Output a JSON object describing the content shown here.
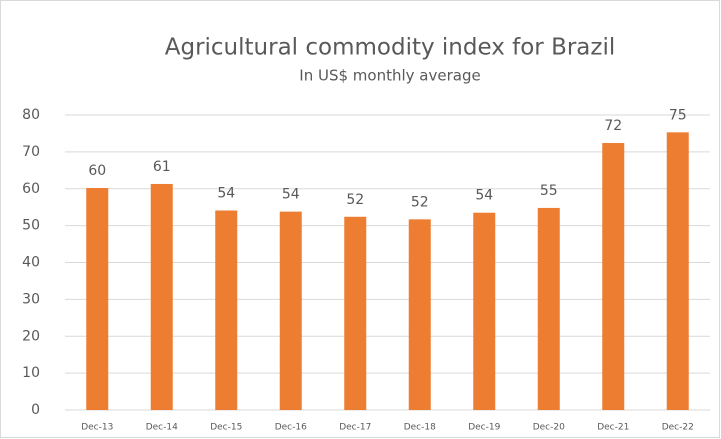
{
  "chart_data": {
    "type": "bar",
    "title": "Agricultural commodity index for Brazil",
    "subtitle": "In US$ monthly average",
    "categories": [
      "Dec-13",
      "Dec-14",
      "Dec-15",
      "Dec-16",
      "Dec-17",
      "Dec-18",
      "Dec-19",
      "Dec-20",
      "Dec-21",
      "Dec-22"
    ],
    "values": [
      60.2,
      61.3,
      54.1,
      53.8,
      52.4,
      51.7,
      53.5,
      54.8,
      72.4,
      75.3
    ],
    "value_labels": [
      "60",
      "61",
      "54",
      "54",
      "52",
      "52",
      "54",
      "55",
      "72",
      "75"
    ],
    "color": "#ed7d31",
    "ylim": [
      0,
      80
    ],
    "yticks": [
      0,
      10,
      20,
      30,
      40,
      50,
      60,
      70,
      80
    ],
    "grid": true
  }
}
